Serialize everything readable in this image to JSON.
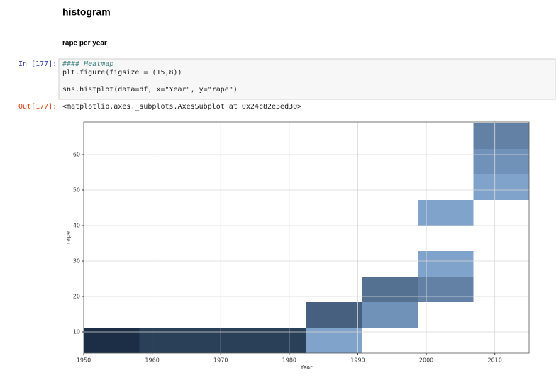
{
  "heading": "histogram",
  "subheading": "rape per year",
  "input": {
    "prompt": "In [177]:",
    "blocks": [
      [
        "#### Heatmap",
        "plt.figure(figsize = (15,8))"
      ],
      [
        "sns.histplot(data=df, x=\"Year\", y=\"rape\")"
      ]
    ]
  },
  "output": {
    "prompt": "Out[177]:",
    "text": "<matplotlib.axes._subplots.AxesSubplot at 0x24c82e3ed30>"
  },
  "chart_data": {
    "type": "histogram2d",
    "x_label": "Year",
    "y_label": "rape",
    "x_bins": [
      1950,
      1958.125,
      1966.25,
      1974.375,
      1982.5,
      1990.625,
      1998.75,
      2006.875,
      2015
    ],
    "y_bins": [
      4,
      11.2,
      18.4,
      25.6,
      32.8,
      40,
      47.2,
      54.4,
      61.6,
      68.8
    ],
    "counts": [
      [
        9,
        0,
        0,
        0,
        0,
        0,
        0,
        0,
        0
      ],
      [
        8,
        0,
        0,
        0,
        0,
        0,
        0,
        0,
        0
      ],
      [
        8,
        0,
        0,
        0,
        0,
        0,
        0,
        0,
        0
      ],
      [
        8,
        0,
        0,
        0,
        0,
        0,
        0,
        0,
        0
      ],
      [
        2,
        6,
        0,
        0,
        0,
        0,
        0,
        0,
        0
      ],
      [
        0,
        3,
        5,
        0,
        0,
        0,
        0,
        0,
        0
      ],
      [
        0,
        0,
        4,
        2,
        0,
        2,
        0,
        0,
        0
      ],
      [
        0,
        0,
        0,
        0,
        0,
        0,
        2,
        3,
        4
      ]
    ],
    "cmap": [
      "#9cc4f2",
      "#1c2e45"
    ],
    "xlim": [
      1950,
      2015
    ],
    "ylim": [
      4,
      69.2
    ],
    "xticks": [
      1950,
      1960,
      1970,
      1980,
      1990,
      2000,
      2010
    ],
    "yticks": [
      10,
      20,
      30,
      40,
      50,
      60
    ],
    "grid": true
  }
}
